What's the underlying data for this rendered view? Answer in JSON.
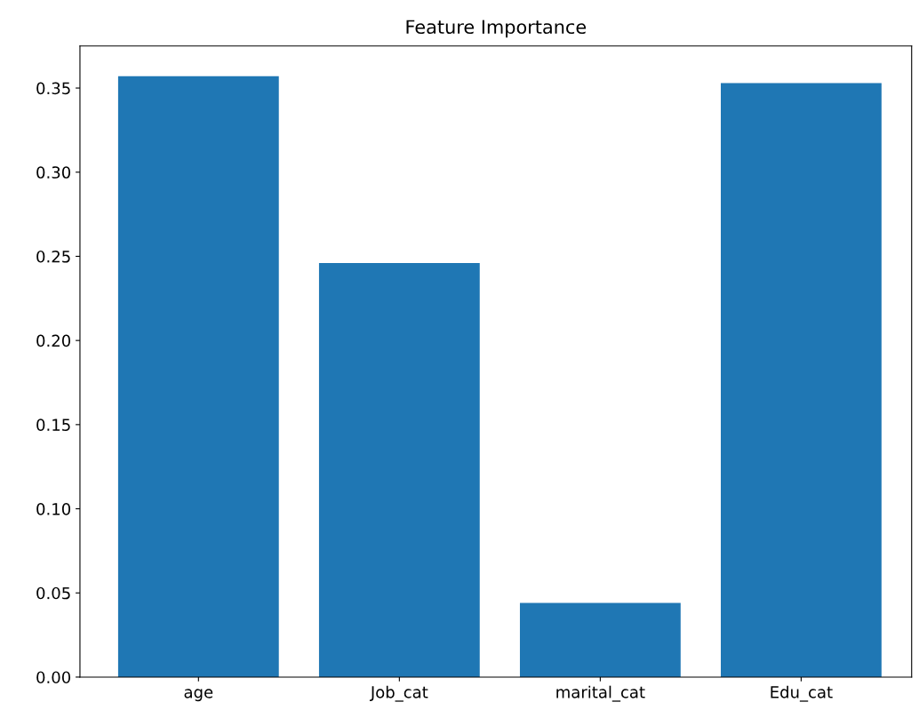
{
  "chart_data": {
    "type": "bar",
    "title": "Feature Importance",
    "categories": [
      "age",
      "Job_cat",
      "marital_cat",
      "Edu_cat"
    ],
    "values": [
      0.357,
      0.246,
      0.044,
      0.353
    ],
    "color": "#1f77b4",
    "ylim": [
      0,
      0.375
    ],
    "yticks": [
      {
        "value": 0,
        "label": "0.00"
      },
      {
        "value": 0.05,
        "label": "0.05"
      },
      {
        "value": 0.1,
        "label": "0.10"
      },
      {
        "value": 0.15,
        "label": "0.15"
      },
      {
        "value": 0.2,
        "label": "0.20"
      },
      {
        "value": 0.25,
        "label": "0.25"
      },
      {
        "value": 0.3,
        "label": "0.30"
      },
      {
        "value": 0.35,
        "label": "0.35"
      }
    ],
    "grid": false,
    "legend": false
  }
}
